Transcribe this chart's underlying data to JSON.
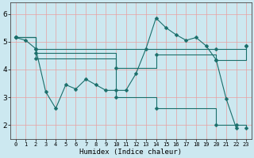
{
  "xlabel": "Humidex (Indice chaleur)",
  "bg_color": "#cce8f0",
  "grid_color": "#e8a0a0",
  "line_color": "#1a6e6a",
  "xlim": [
    -0.5,
    23.5
  ],
  "ylim": [
    1.5,
    6.4
  ],
  "yticks": [
    2,
    3,
    4,
    5,
    6
  ],
  "xticks": [
    0,
    1,
    2,
    3,
    4,
    5,
    6,
    7,
    8,
    9,
    10,
    11,
    12,
    13,
    14,
    15,
    16,
    17,
    18,
    19,
    20,
    21,
    22,
    23
  ],
  "series1_x": [
    0,
    1,
    2,
    3,
    4,
    5,
    6,
    7,
    8,
    9,
    10,
    11,
    12,
    13,
    14,
    15,
    16,
    17,
    18,
    19,
    20,
    21,
    22
  ],
  "series1_y": [
    5.15,
    5.05,
    4.75,
    3.2,
    2.6,
    3.45,
    3.3,
    3.65,
    3.45,
    3.25,
    3.25,
    3.25,
    3.85,
    4.75,
    5.85,
    5.5,
    5.25,
    5.05,
    5.15,
    4.85,
    4.35,
    2.95,
    1.9
  ],
  "series2_x": [
    0,
    2,
    20,
    23
  ],
  "series2_y": [
    5.15,
    4.75,
    4.75,
    4.85
  ],
  "series3_x": [
    0,
    2,
    10,
    14,
    20,
    23
  ],
  "series3_y": [
    5.15,
    4.6,
    4.05,
    4.55,
    4.35,
    4.85
  ],
  "series4_x": [
    0,
    2,
    10,
    14,
    20,
    22,
    23
  ],
  "series4_y": [
    5.15,
    4.4,
    3.0,
    2.6,
    2.0,
    2.0,
    1.9
  ]
}
